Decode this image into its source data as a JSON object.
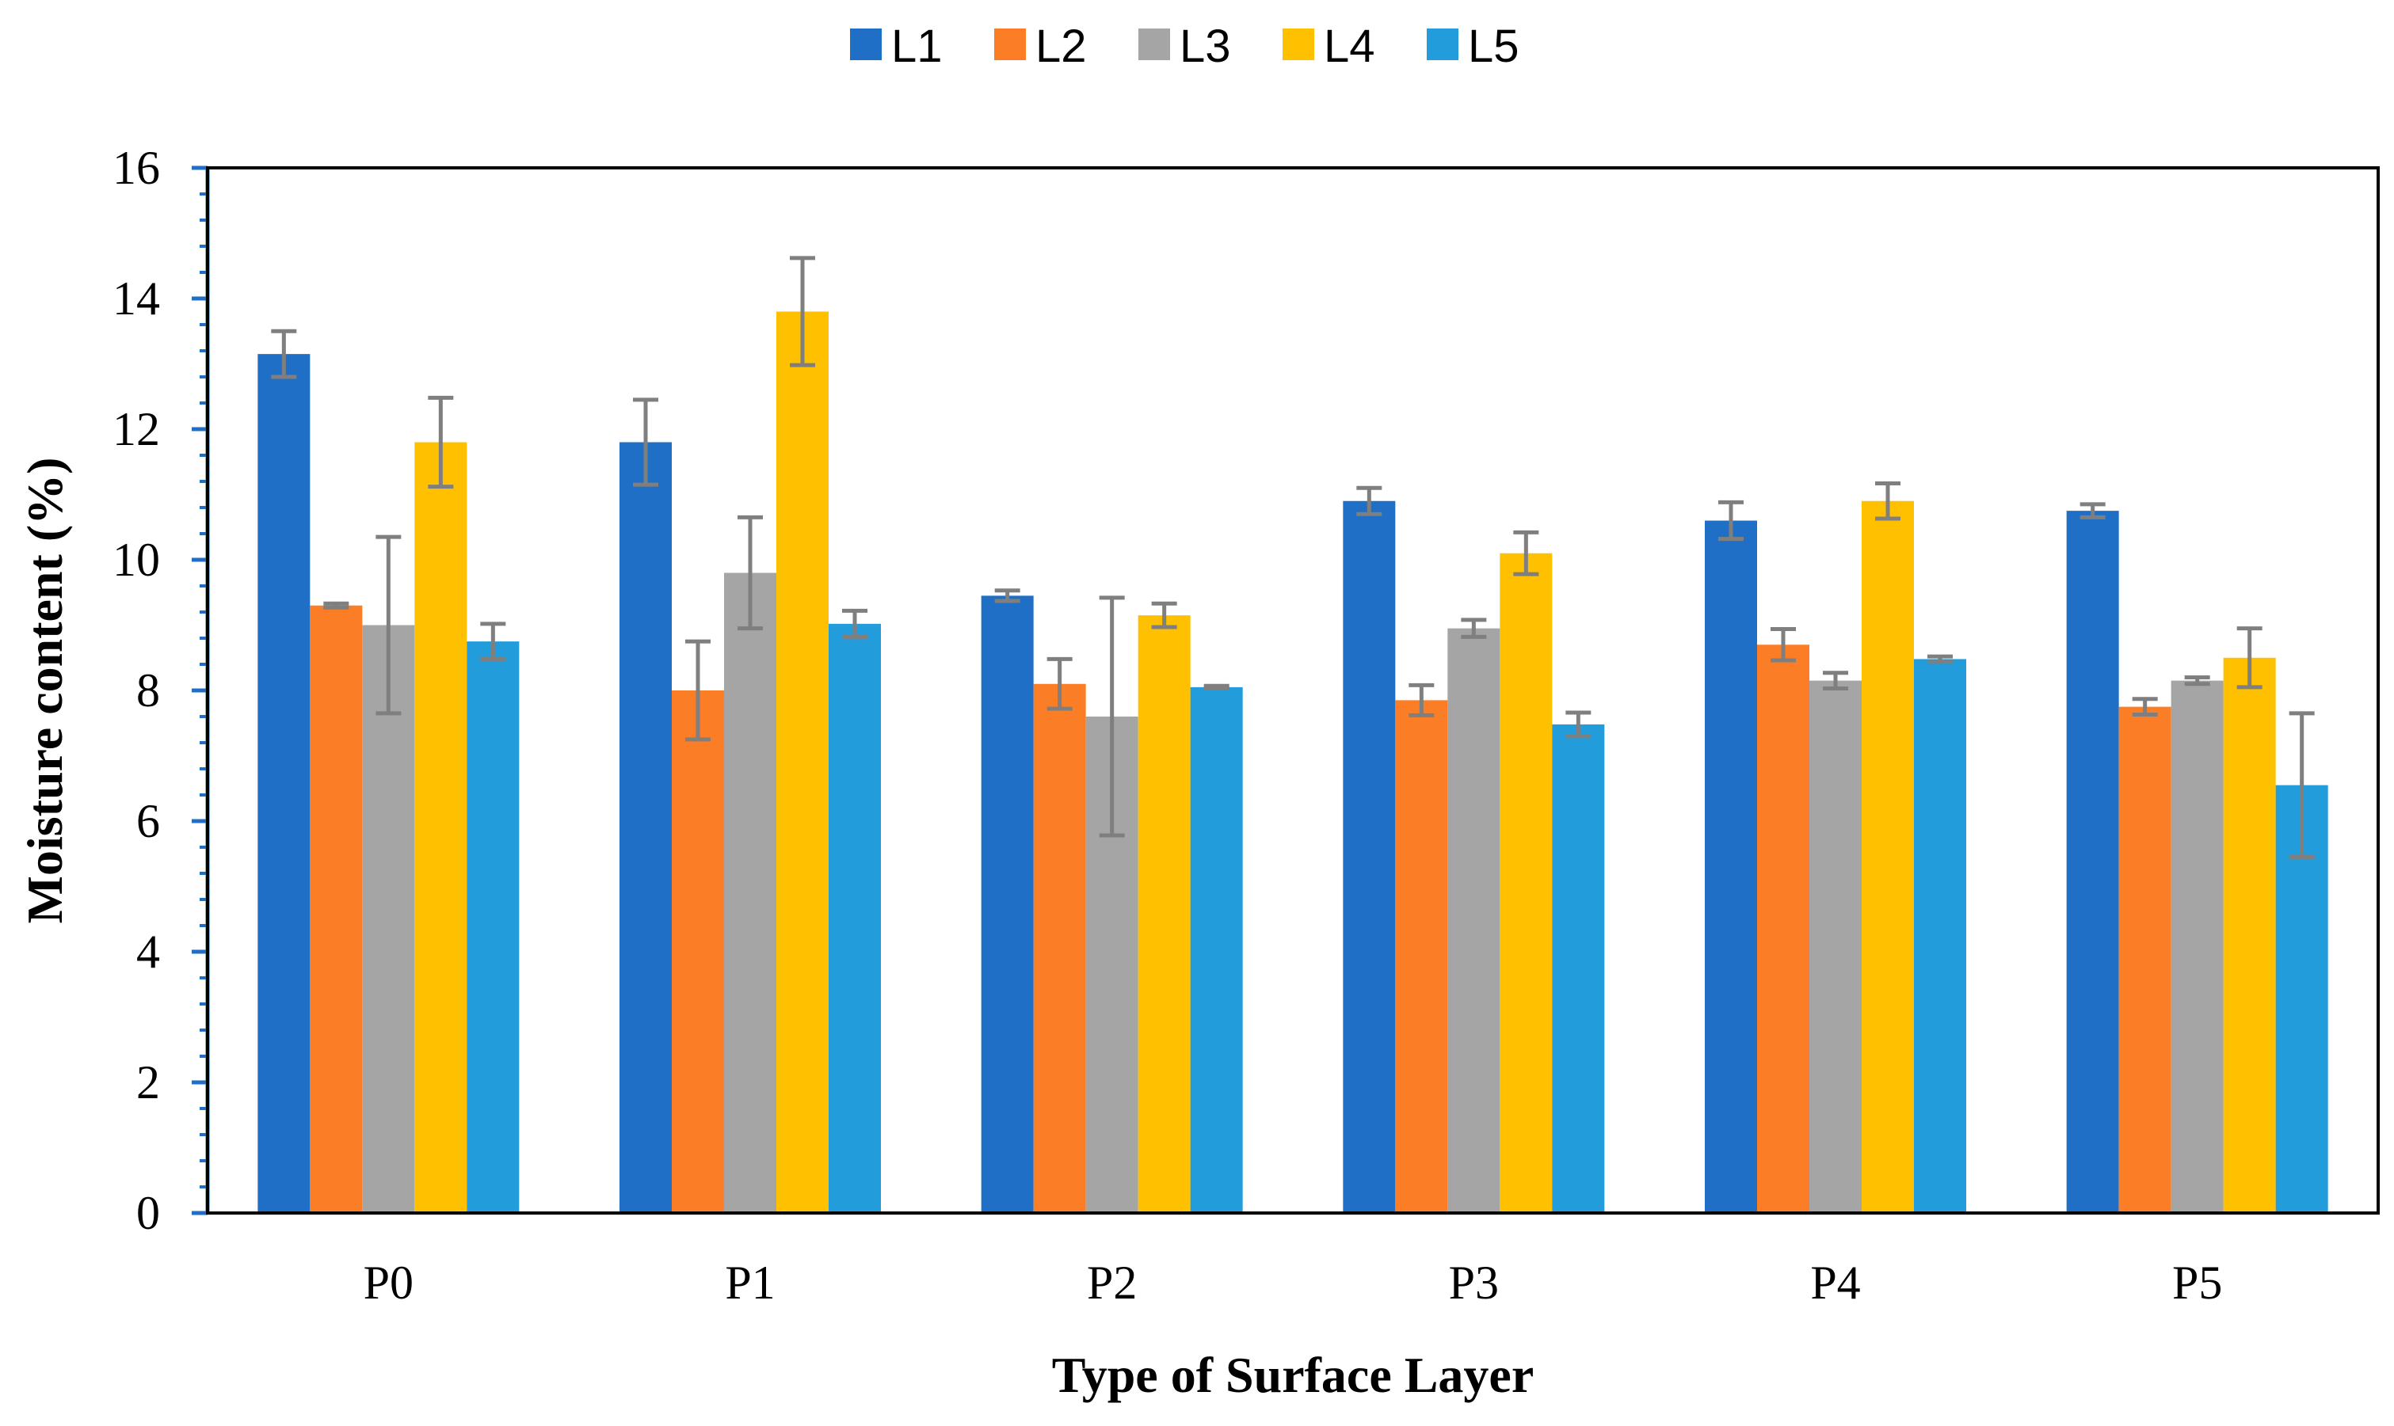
{
  "chart_data": {
    "type": "bar",
    "title": "",
    "xlabel": "Type of Surface Layer",
    "ylabel": "Moisture content  (%)",
    "ylim": [
      0,
      16
    ],
    "yticks": [
      "0",
      "2",
      "4",
      "6",
      "8",
      "10",
      "12",
      "14",
      "16"
    ],
    "categories": [
      "P0",
      "P1",
      "P2",
      "P3",
      "P4",
      "P5"
    ],
    "legend_position": "top",
    "grid": false,
    "series": [
      {
        "name": "L1",
        "color": "#1f6fc6",
        "values": [
          13.15,
          11.8,
          9.45,
          10.9,
          10.6,
          10.75
        ],
        "errors": [
          0.35,
          0.65,
          0.08,
          0.2,
          0.28,
          0.1
        ]
      },
      {
        "name": "L2",
        "color": "#fb7e27",
        "values": [
          9.3,
          8.0,
          8.1,
          7.85,
          8.7,
          7.75
        ],
        "errors": [
          0.03,
          0.75,
          0.38,
          0.23,
          0.24,
          0.12
        ]
      },
      {
        "name": "L3",
        "color": "#a5a5a5",
        "values": [
          9.0,
          9.8,
          7.6,
          8.95,
          8.15,
          8.15
        ],
        "errors": [
          1.35,
          0.85,
          1.82,
          0.13,
          0.12,
          0.05
        ]
      },
      {
        "name": "L4",
        "color": "#ffc000",
        "values": [
          11.8,
          13.8,
          9.15,
          10.1,
          10.9,
          8.5
        ],
        "errors": [
          0.68,
          0.82,
          0.18,
          0.32,
          0.27,
          0.45
        ]
      },
      {
        "name": "L5",
        "color": "#229cda",
        "values": [
          8.75,
          9.02,
          8.05,
          7.48,
          8.48,
          6.55
        ],
        "errors": [
          0.27,
          0.2,
          0.02,
          0.18,
          0.04,
          1.1
        ]
      }
    ]
  }
}
